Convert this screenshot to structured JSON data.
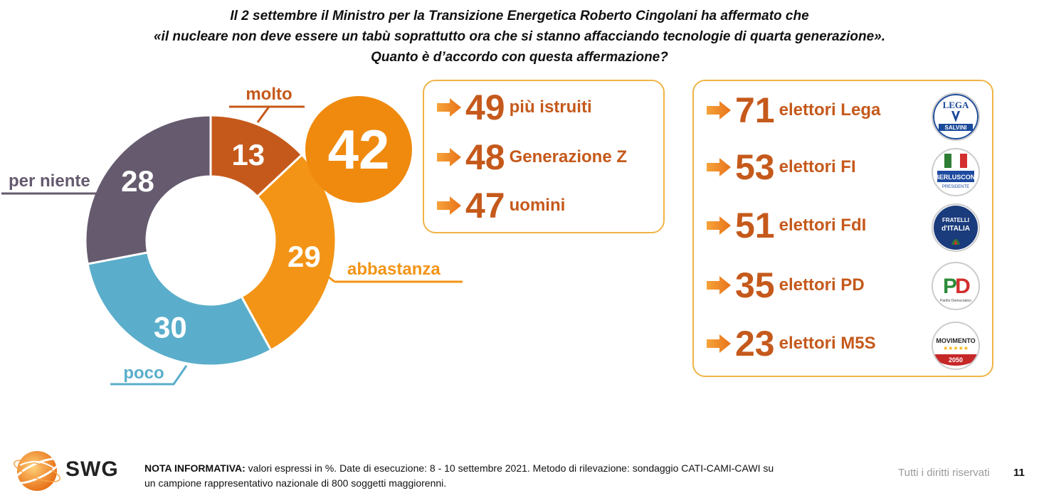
{
  "question": {
    "line1": "Il 2 settembre il Ministro per la Transizione Energetica Roberto Cingolani ha affermato che",
    "line2": "«il nucleare non deve essere un tabù soprattutto ora che si stanno affacciando tecnologie di quarta generazione».",
    "line3": "Quanto è d’accordo con questa affermazione?"
  },
  "chart_data": {
    "type": "pie",
    "categories": [
      "molto",
      "abbastanza",
      "poco",
      "per niente"
    ],
    "values": [
      13,
      29,
      30,
      28
    ],
    "colors": [
      "#c5591b",
      "#f39416",
      "#5aaecb",
      "#655a6e"
    ],
    "highlight_total": 42
  },
  "colors": {
    "accent": "#c5591b",
    "box_border": "#f0b445",
    "total_circle": "#ef8a0e"
  },
  "segments_box": {
    "items": [
      {
        "value": "49",
        "label": "più istruiti"
      },
      {
        "value": "48",
        "label": "Generazione Z"
      },
      {
        "value": "47",
        "label": "uomini"
      }
    ]
  },
  "parties_box": {
    "items": [
      {
        "value": "71",
        "label": "elettori Lega",
        "logo": "lega-logo"
      },
      {
        "value": "53",
        "label": "elettori FI",
        "logo": "forza-italia-logo"
      },
      {
        "value": "51",
        "label": "elettori FdI",
        "logo": "fratelli-italia-logo"
      },
      {
        "value": "35",
        "label": "elettori PD",
        "logo": "pd-logo"
      },
      {
        "value": "23",
        "label": "elettori M5S",
        "logo": "m5s-logo"
      }
    ]
  },
  "footer": {
    "brand": "SWG",
    "note_label": "NOTA INFORMATIVA:",
    "note_line1": " valori espressi in %. Date di esecuzione: 8 - 10 settembre 2021. Metodo di rilevazione: sondaggio CATI-CAMI-CAWI su",
    "note_line2": "un campione rappresentativo nazionale di 800 soggetti maggiorenni.",
    "rights": "Tutti i diritti riservati",
    "page": "11"
  }
}
